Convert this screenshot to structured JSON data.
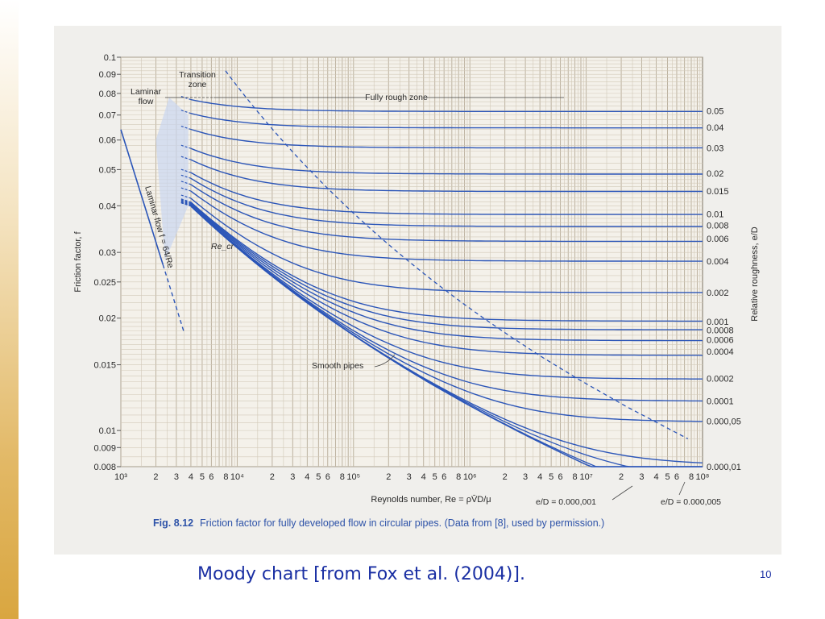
{
  "slide": {
    "caption": "Moody chart [from Fox et al. (2004)].",
    "page_number": "10"
  },
  "figure": {
    "label": "Fig. 8.12",
    "caption": "Friction factor for fully developed flow in circular pipes. (Data from [8], used by permission.)"
  },
  "chart_data": {
    "type": "line",
    "x_scale": "log",
    "y_scale": "log",
    "xlim": [
      1000,
      100000000
    ],
    "ylim": [
      0.008,
      0.1
    ],
    "grid": true,
    "ylabel": "Friction factor, f",
    "xlabel": "Reynolds number, Re = ρV̄D/μ",
    "right_axis_label": "Relative roughness, e/D",
    "y_ticks": [
      "0.1",
      "0.09",
      "0.08",
      "0.07",
      "0.06",
      "0.05",
      "0.04",
      "0.03",
      "0.025",
      "0.02",
      "0.015",
      "0.01",
      "0.009",
      "0.008"
    ],
    "x_tick_labels": [
      "10³",
      "2",
      "3",
      "4",
      "5",
      "6",
      "8",
      "10⁴",
      "2",
      "3",
      "4",
      "5",
      "6",
      "8",
      "10⁵",
      "2",
      "3",
      "4",
      "5",
      "6",
      "8",
      "10⁶",
      "2",
      "3",
      "4",
      "5",
      "6",
      "8",
      "10⁷",
      "2",
      "3",
      "4",
      "5",
      "6",
      "8",
      "10⁸"
    ],
    "roughness_series": [
      {
        "label": "0.05",
        "f": 0.0718
      },
      {
        "label": "0.04",
        "f": 0.0649
      },
      {
        "label": "0.03",
        "f": 0.0572
      },
      {
        "label": "0.02",
        "f": 0.0489
      },
      {
        "label": "0.015",
        "f": 0.0438
      },
      {
        "label": "0.01",
        "f": 0.038
      },
      {
        "label": "0.008",
        "f": 0.0355
      },
      {
        "label": "0.006",
        "f": 0.0327
      },
      {
        "label": "0.004",
        "f": 0.0284
      },
      {
        "label": "0.002",
        "f": 0.0234
      },
      {
        "label": "0.001",
        "f": 0.0196
      },
      {
        "label": "0.0008",
        "f": 0.0186
      },
      {
        "label": "0.0006",
        "f": 0.0175
      },
      {
        "label": "0.0004",
        "f": 0.0163
      },
      {
        "label": "0.0002",
        "f": 0.0138
      },
      {
        "label": "0.0001",
        "f": 0.012
      },
      {
        "label": "0.000,05",
        "f": 0.0106
      },
      {
        "label": "0.000,01",
        "f": 0.008
      }
    ],
    "laminar": {
      "equation": "f = 64/Re",
      "Re_range": [
        1000,
        2300
      ]
    },
    "annotations": {
      "laminar_zone": "Laminar\nflow",
      "transition_zone": "Transition\nzone",
      "fully_rough_zone": "Fully rough zone",
      "laminar_flow_label": "Laminar flow f = 64/Re",
      "re_cr": "Re_cr",
      "smooth_pipes": "Smooth pipes",
      "bottom_label_1": "e/D = 0.000,001",
      "bottom_label_2": "e/D = 0.000,005"
    }
  }
}
